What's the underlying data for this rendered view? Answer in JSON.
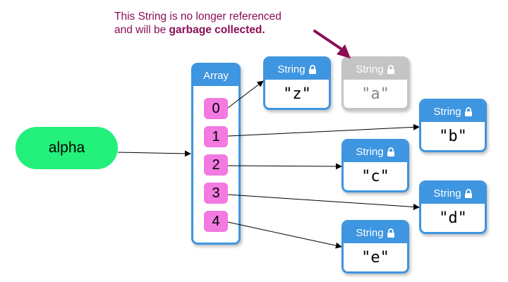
{
  "annotation": {
    "line1": "This String is no longer referenced",
    "line2_prefix": "and will be ",
    "line2_bold": "garbage collected."
  },
  "variable": {
    "name": "alpha"
  },
  "array": {
    "header": "Array",
    "indices": [
      "0",
      "1",
      "2",
      "3",
      "4"
    ]
  },
  "strings": [
    {
      "id": "z",
      "header": "String",
      "value": "\"z\""
    },
    {
      "id": "a",
      "header": "String",
      "value": "\"a\"",
      "garbage": true
    },
    {
      "id": "b",
      "header": "String",
      "value": "\"b\""
    },
    {
      "id": "c",
      "header": "String",
      "value": "\"c\""
    },
    {
      "id": "d",
      "header": "String",
      "value": "\"d\""
    },
    {
      "id": "e",
      "header": "String",
      "value": "\"e\""
    }
  ],
  "icons": {
    "lock": "lock-icon",
    "arrow": "arrow-icon"
  },
  "colors": {
    "accent": "#3e95e0",
    "variable": "#22f07a",
    "index": "#f27ae0",
    "garbage": "#c4c4c4",
    "annotation": "#8b0d55"
  }
}
